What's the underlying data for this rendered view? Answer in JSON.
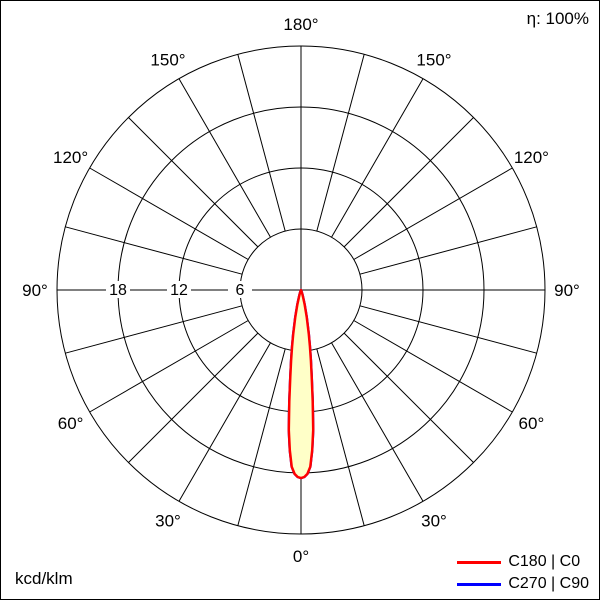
{
  "header": {
    "efficiency_label": "η: 100%"
  },
  "footer": {
    "unit_label": "kcd/klm"
  },
  "chart_data": {
    "type": "polar-photometric",
    "title": "Luminous intensity distribution polar diagram",
    "unit": "kcd/klm",
    "efficiency": "η: 100%",
    "rmax": 24,
    "radial_ticks": [
      6,
      12,
      18,
      24
    ],
    "radial_tick_labels": [
      "6",
      "12",
      "18"
    ],
    "angle_step_deg": 15,
    "angle_labels_deg": [
      0,
      30,
      60,
      90,
      120,
      150,
      180
    ],
    "grid_color": "#000000",
    "text_color": "#000000",
    "legend_position": "bottom-right",
    "curves": [
      {
        "name": "C180 | C0",
        "color": "#ff0000",
        "fill": "#ffffc8",
        "gamma_deg": [
          0,
          1,
          2,
          3,
          4,
          5,
          6,
          7,
          8,
          9,
          10,
          12,
          14,
          16,
          18,
          20,
          25,
          30
        ],
        "values": [
          18.5,
          18.4,
          18.1,
          17.4,
          15.8,
          13.8,
          11.0,
          8.6,
          7.0,
          5.6,
          4.4,
          2.7,
          1.5,
          0.8,
          0.4,
          0.18,
          0.05,
          0
        ]
      },
      {
        "name": "C270 | C90",
        "color": "#0000ff",
        "fill": "#ffffc8",
        "gamma_deg": [
          0,
          1,
          2,
          3,
          4,
          5,
          6,
          7,
          8,
          9,
          10,
          12,
          14,
          16,
          18,
          20,
          25,
          30
        ],
        "values": [
          18.5,
          18.4,
          18.1,
          17.4,
          15.8,
          13.8,
          11.0,
          8.6,
          7.0,
          5.6,
          4.4,
          2.7,
          1.5,
          0.8,
          0.4,
          0.18,
          0.05,
          0
        ]
      }
    ]
  }
}
